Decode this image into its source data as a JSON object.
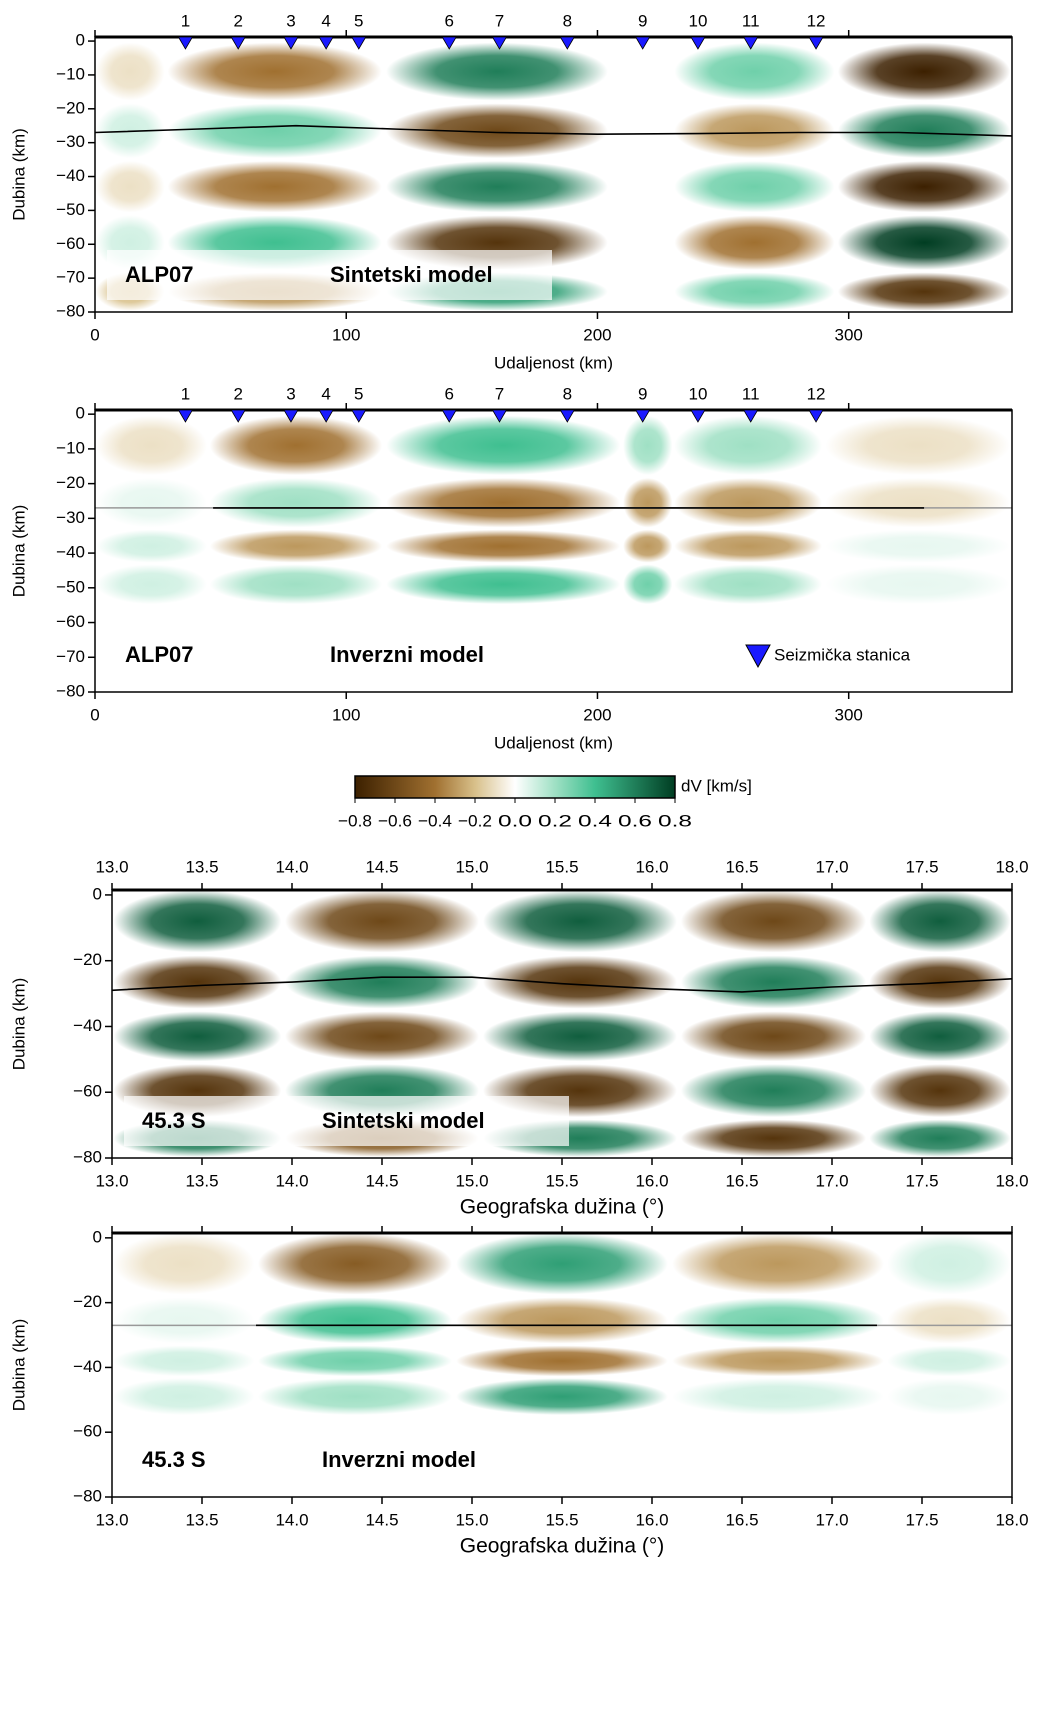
{
  "chart_data": [
    {
      "type": "heatmap",
      "xlabel": "Udaljenost (km)",
      "ylabel": "Dubina (km)",
      "xlim": [
        0,
        365
      ],
      "ylim": [
        -80,
        1.2
      ],
      "xticks": [
        0,
        100,
        200,
        300
      ],
      "yticks": [
        0,
        {
          "value": -10,
          "label": "−10"
        },
        {
          "value": -20,
          "label": "−20"
        },
        {
          "value": -30,
          "label": "−30"
        },
        {
          "value": -40,
          "label": "−40"
        },
        {
          "value": -50,
          "label": "−50"
        },
        {
          "value": -60,
          "label": "−60"
        },
        {
          "value": -70,
          "label": "−70"
        },
        {
          "value": -80,
          "label": "−80"
        }
      ],
      "x_edges": [
        0,
        28,
        115,
        205,
        230,
        295,
        365
      ],
      "depth_edges": [
        0,
        -18,
        -35,
        -51,
        -68,
        -80
      ],
      "values": [
        [
          -0.1,
          -0.4,
          0.6,
          0,
          0.3,
          -0.8
        ],
        [
          0.1,
          0.3,
          -0.6,
          0,
          -0.3,
          0.6
        ],
        [
          -0.1,
          -0.4,
          0.6,
          0,
          0.3,
          -0.8
        ],
        [
          0.1,
          0.4,
          -0.7,
          0,
          -0.4,
          0.8
        ],
        [
          -0.2,
          -0.3,
          0.5,
          0,
          0.3,
          -0.7
        ]
      ],
      "moho": {
        "x": [
          0,
          40,
          80,
          120,
          160,
          200,
          240,
          280,
          320,
          365
        ],
        "y": [
          -27,
          -26,
          -25,
          -26,
          -27,
          -27.5,
          -27.3,
          -27,
          -27,
          -28
        ]
      },
      "stations": {
        "x": [
          36,
          57,
          78,
          92,
          105,
          141,
          161,
          188,
          218,
          240,
          261,
          287
        ],
        "labels": [
          "1",
          "2",
          "3",
          "4",
          "5",
          "6",
          "7",
          "8",
          "9",
          "10",
          "11",
          "12"
        ]
      },
      "annotations": [
        "ALP07",
        "Sintetski model"
      ]
    },
    {
      "type": "heatmap",
      "xlabel": "Udaljenost (km)",
      "ylabel": "Dubina (km)",
      "xlim": [
        0,
        365
      ],
      "ylim": [
        -80,
        1.2
      ],
      "xticks": [
        0,
        100,
        200,
        300
      ],
      "yticks": [
        0,
        {
          "value": -10,
          "label": "−10"
        },
        {
          "value": -20,
          "label": "−20"
        },
        {
          "value": -30,
          "label": "−30"
        },
        {
          "value": -40,
          "label": "−40"
        },
        {
          "value": -50,
          "label": "−50"
        },
        {
          "value": -60,
          "label": "−60"
        },
        {
          "value": -70,
          "label": "−70"
        },
        {
          "value": -80,
          "label": "−80"
        }
      ],
      "x_edges": [
        0,
        45,
        115,
        210,
        230,
        290,
        365
      ],
      "depth_edges": [
        0,
        -18,
        -33,
        -43,
        -55,
        -80
      ],
      "values": [
        [
          -0.1,
          -0.4,
          0.4,
          0.2,
          0.2,
          -0.1
        ],
        [
          0.05,
          0.2,
          -0.4,
          -0.3,
          -0.3,
          -0.1
        ],
        [
          0.1,
          -0.3,
          -0.4,
          -0.3,
          -0.3,
          0.05
        ],
        [
          0.1,
          0.2,
          0.4,
          0.3,
          0.2,
          0.05
        ],
        [
          0,
          0,
          0,
          0,
          0,
          0
        ]
      ],
      "moho": {
        "x": [
          47,
          330
        ],
        "y": [
          -27,
          -27
        ]
      },
      "reference_line": -27,
      "stations": {
        "x": [
          36,
          57,
          78,
          92,
          105,
          141,
          161,
          188,
          218,
          240,
          261,
          287
        ],
        "labels": [
          "1",
          "2",
          "3",
          "4",
          "5",
          "6",
          "7",
          "8",
          "9",
          "10",
          "11",
          "12"
        ]
      },
      "annotations": [
        "ALP07",
        "Inverzni model"
      ],
      "legend": "Seizmička stanica"
    },
    {
      "type": "colorbar",
      "label": "dV [km/s]",
      "lim": [
        -0.8,
        0.8
      ],
      "ticks": [
        {
          "value": -0.8,
          "label": "−0.8"
        },
        {
          "value": -0.6,
          "label": "−0.6"
        },
        {
          "value": -0.4,
          "label": "−0.4"
        },
        {
          "value": -0.2,
          "label": "−0.2"
        },
        {
          "value": 0,
          "label": "0.0"
        },
        0.2,
        0.4,
        0.6,
        0.8
      ]
    },
    {
      "type": "heatmap",
      "xlabel": "Geografska dužina (°)",
      "ylabel": "Dubina (km)",
      "xlim": [
        13,
        18
      ],
      "ylim": [
        -80,
        1.5
      ],
      "top_tick_labels": true,
      "xticks": [
        {
          "value": 13,
          "label": "13.0"
        },
        13.5,
        {
          "value": 14,
          "label": "14.0"
        },
        14.5,
        {
          "value": 15,
          "label": "15.0"
        },
        15.5,
        {
          "value": 16,
          "label": "16.0"
        },
        16.5,
        {
          "value": 17,
          "label": "17.0"
        },
        17.5,
        {
          "value": 18,
          "label": "18.0"
        }
      ],
      "yticks": [
        0,
        {
          "value": -20,
          "label": "−20"
        },
        {
          "value": -40,
          "label": "−40"
        },
        {
          "value": -60,
          "label": "−60"
        },
        {
          "value": -80,
          "label": "−80"
        }
      ],
      "x_edges": [
        13,
        13.95,
        15.05,
        16.15,
        17.2,
        18
      ],
      "depth_edges": [
        2,
        -18,
        -35,
        -51,
        -68,
        -80
      ],
      "values": [
        [
          0.7,
          -0.6,
          0.7,
          -0.6,
          0.7
        ],
        [
          -0.7,
          0.6,
          -0.7,
          0.6,
          -0.7
        ],
        [
          0.7,
          -0.6,
          0.7,
          -0.6,
          0.7
        ],
        [
          -0.7,
          0.6,
          -0.7,
          0.6,
          -0.7
        ],
        [
          0.6,
          -0.5,
          0.6,
          -0.7,
          0.6
        ]
      ],
      "moho": {
        "x": [
          13,
          13.5,
          14,
          14.5,
          15,
          15.5,
          16,
          16.5,
          17,
          17.5,
          18
        ],
        "y": [
          -29,
          -27.5,
          -26.5,
          -25,
          -25,
          -27,
          -28.5,
          -29.5,
          -28,
          -27,
          -25.5
        ]
      },
      "annotations": [
        "45.3 S",
        "Sintetski model"
      ]
    },
    {
      "type": "heatmap",
      "xlabel": "Geografska dužina (°)",
      "ylabel": "Dubina (km)",
      "xlim": [
        13,
        18
      ],
      "ylim": [
        -80,
        1.5
      ],
      "xticks": [
        {
          "value": 13,
          "label": "13.0"
        },
        13.5,
        {
          "value": 14,
          "label": "14.0"
        },
        14.5,
        {
          "value": 15,
          "label": "15.0"
        },
        15.5,
        {
          "value": 16,
          "label": "16.0"
        },
        16.5,
        {
          "value": 17,
          "label": "17.0"
        },
        17.5,
        {
          "value": 18,
          "label": "18.0"
        }
      ],
      "yticks": [
        0,
        {
          "value": -20,
          "label": "−20"
        },
        {
          "value": -40,
          "label": "−40"
        },
        {
          "value": -60,
          "label": "−60"
        },
        {
          "value": -80,
          "label": "−80"
        }
      ],
      "x_edges": [
        13,
        13.8,
        14.9,
        16.1,
        17.3,
        18
      ],
      "depth_edges": [
        2,
        -18,
        -33,
        -43,
        -55,
        -80
      ],
      "values": [
        [
          -0.1,
          -0.5,
          0.5,
          -0.3,
          0.1
        ],
        [
          0.05,
          0.4,
          -0.3,
          0.3,
          -0.1
        ],
        [
          0.1,
          0.3,
          -0.4,
          -0.3,
          0.1
        ],
        [
          0.1,
          0.2,
          0.5,
          0.1,
          0.05
        ],
        [
          0,
          0,
          0,
          0,
          0
        ]
      ],
      "moho": {
        "x": [
          13.8,
          17.25
        ],
        "y": [
          -27,
          -27
        ]
      },
      "reference_line": -27,
      "annotations": [
        "45.3 S",
        "Inverzni model"
      ]
    }
  ]
}
